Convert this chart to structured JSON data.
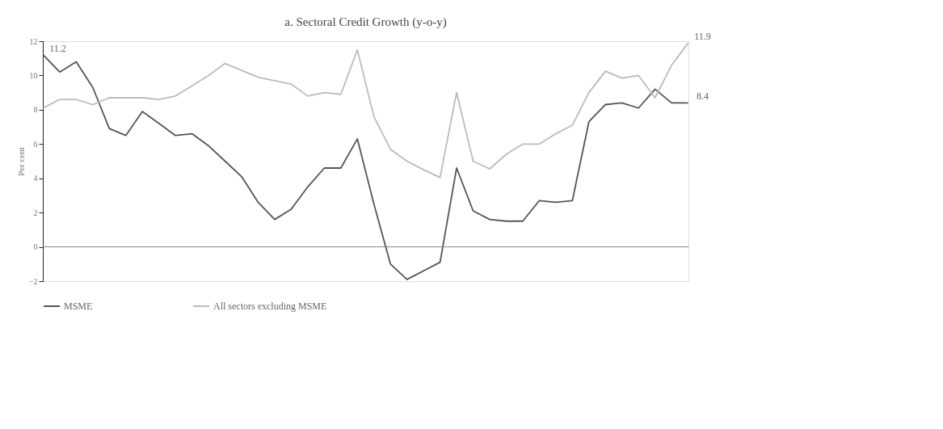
{
  "chart_data": {
    "type": "line",
    "title": "a. Sectoral Credit Growth (y-o-y)",
    "ylabel": "Per cent",
    "categories": [
      null,
      null,
      null,
      null,
      null,
      null,
      null,
      null,
      null,
      null,
      null,
      null,
      null,
      null,
      null,
      null,
      null,
      null,
      null,
      null,
      null,
      null,
      null,
      null,
      null,
      null,
      null,
      null,
      null,
      null,
      null,
      null,
      null,
      null,
      null,
      null,
      null,
      null,
      null,
      null
    ],
    "series": [
      {
        "name": "MSME",
        "color": "#555555",
        "values": [
          11.2,
          10.2,
          10.8,
          9.3,
          6.9,
          6.5,
          7.9,
          7.2,
          6.5,
          6.6,
          5.9,
          5.0,
          4.1,
          2.6,
          1.6,
          2.2,
          3.5,
          4.6,
          4.6,
          6.3,
          2.5,
          -1.0,
          -1.9,
          -1.4,
          -0.9,
          4.6,
          2.1,
          1.6,
          1.5,
          1.5,
          2.7,
          2.6,
          2.7,
          7.3,
          8.3,
          8.4,
          8.1,
          9.2,
          8.4,
          8.4
        ],
        "value_labels": [
          "11.2",
          null,
          null,
          null,
          null,
          null,
          null,
          null,
          null,
          null,
          null,
          null,
          null,
          null,
          null,
          null,
          null,
          null,
          null,
          null,
          null,
          null,
          null,
          null,
          null,
          null,
          null,
          null,
          null,
          null,
          null,
          null,
          null,
          null,
          null,
          null,
          null,
          null,
          null,
          "8.4"
        ]
      },
      {
        "name": "All sectors excluding MSME",
        "color": "#bbbbbb",
        "values": [
          8.1,
          8.6,
          8.6,
          8.3,
          8.7,
          8.7,
          8.7,
          8.6,
          8.8,
          9.4,
          10.0,
          10.7,
          10.3,
          9.9,
          9.7,
          9.5,
          8.8,
          9.0,
          8.9,
          11.5,
          7.6,
          5.7,
          5.0,
          4.5,
          4.05,
          9.0,
          5.0,
          4.55,
          5.4,
          6.0,
          6.0,
          6.6,
          7.1,
          9.0,
          10.25,
          9.85,
          10.0,
          8.7,
          10.6,
          11.9
        ],
        "value_labels": [
          null,
          null,
          null,
          null,
          null,
          null,
          null,
          null,
          null,
          null,
          null,
          null,
          null,
          null,
          null,
          null,
          null,
          null,
          null,
          null,
          null,
          null,
          null,
          null,
          null,
          null,
          null,
          null,
          null,
          null,
          null,
          null,
          null,
          null,
          null,
          null,
          null,
          null,
          null,
          "11.9"
        ]
      }
    ],
    "ylim": [
      -2,
      12
    ],
    "yticks": [
      -2,
      0,
      2,
      4,
      6,
      8,
      10,
      12
    ],
    "ref_lines": [
      {
        "axis": "y",
        "value": 0,
        "color": "#888888"
      }
    ],
    "legend": "bottom",
    "grid": false,
    "line_style": "solid",
    "marker": "none"
  }
}
